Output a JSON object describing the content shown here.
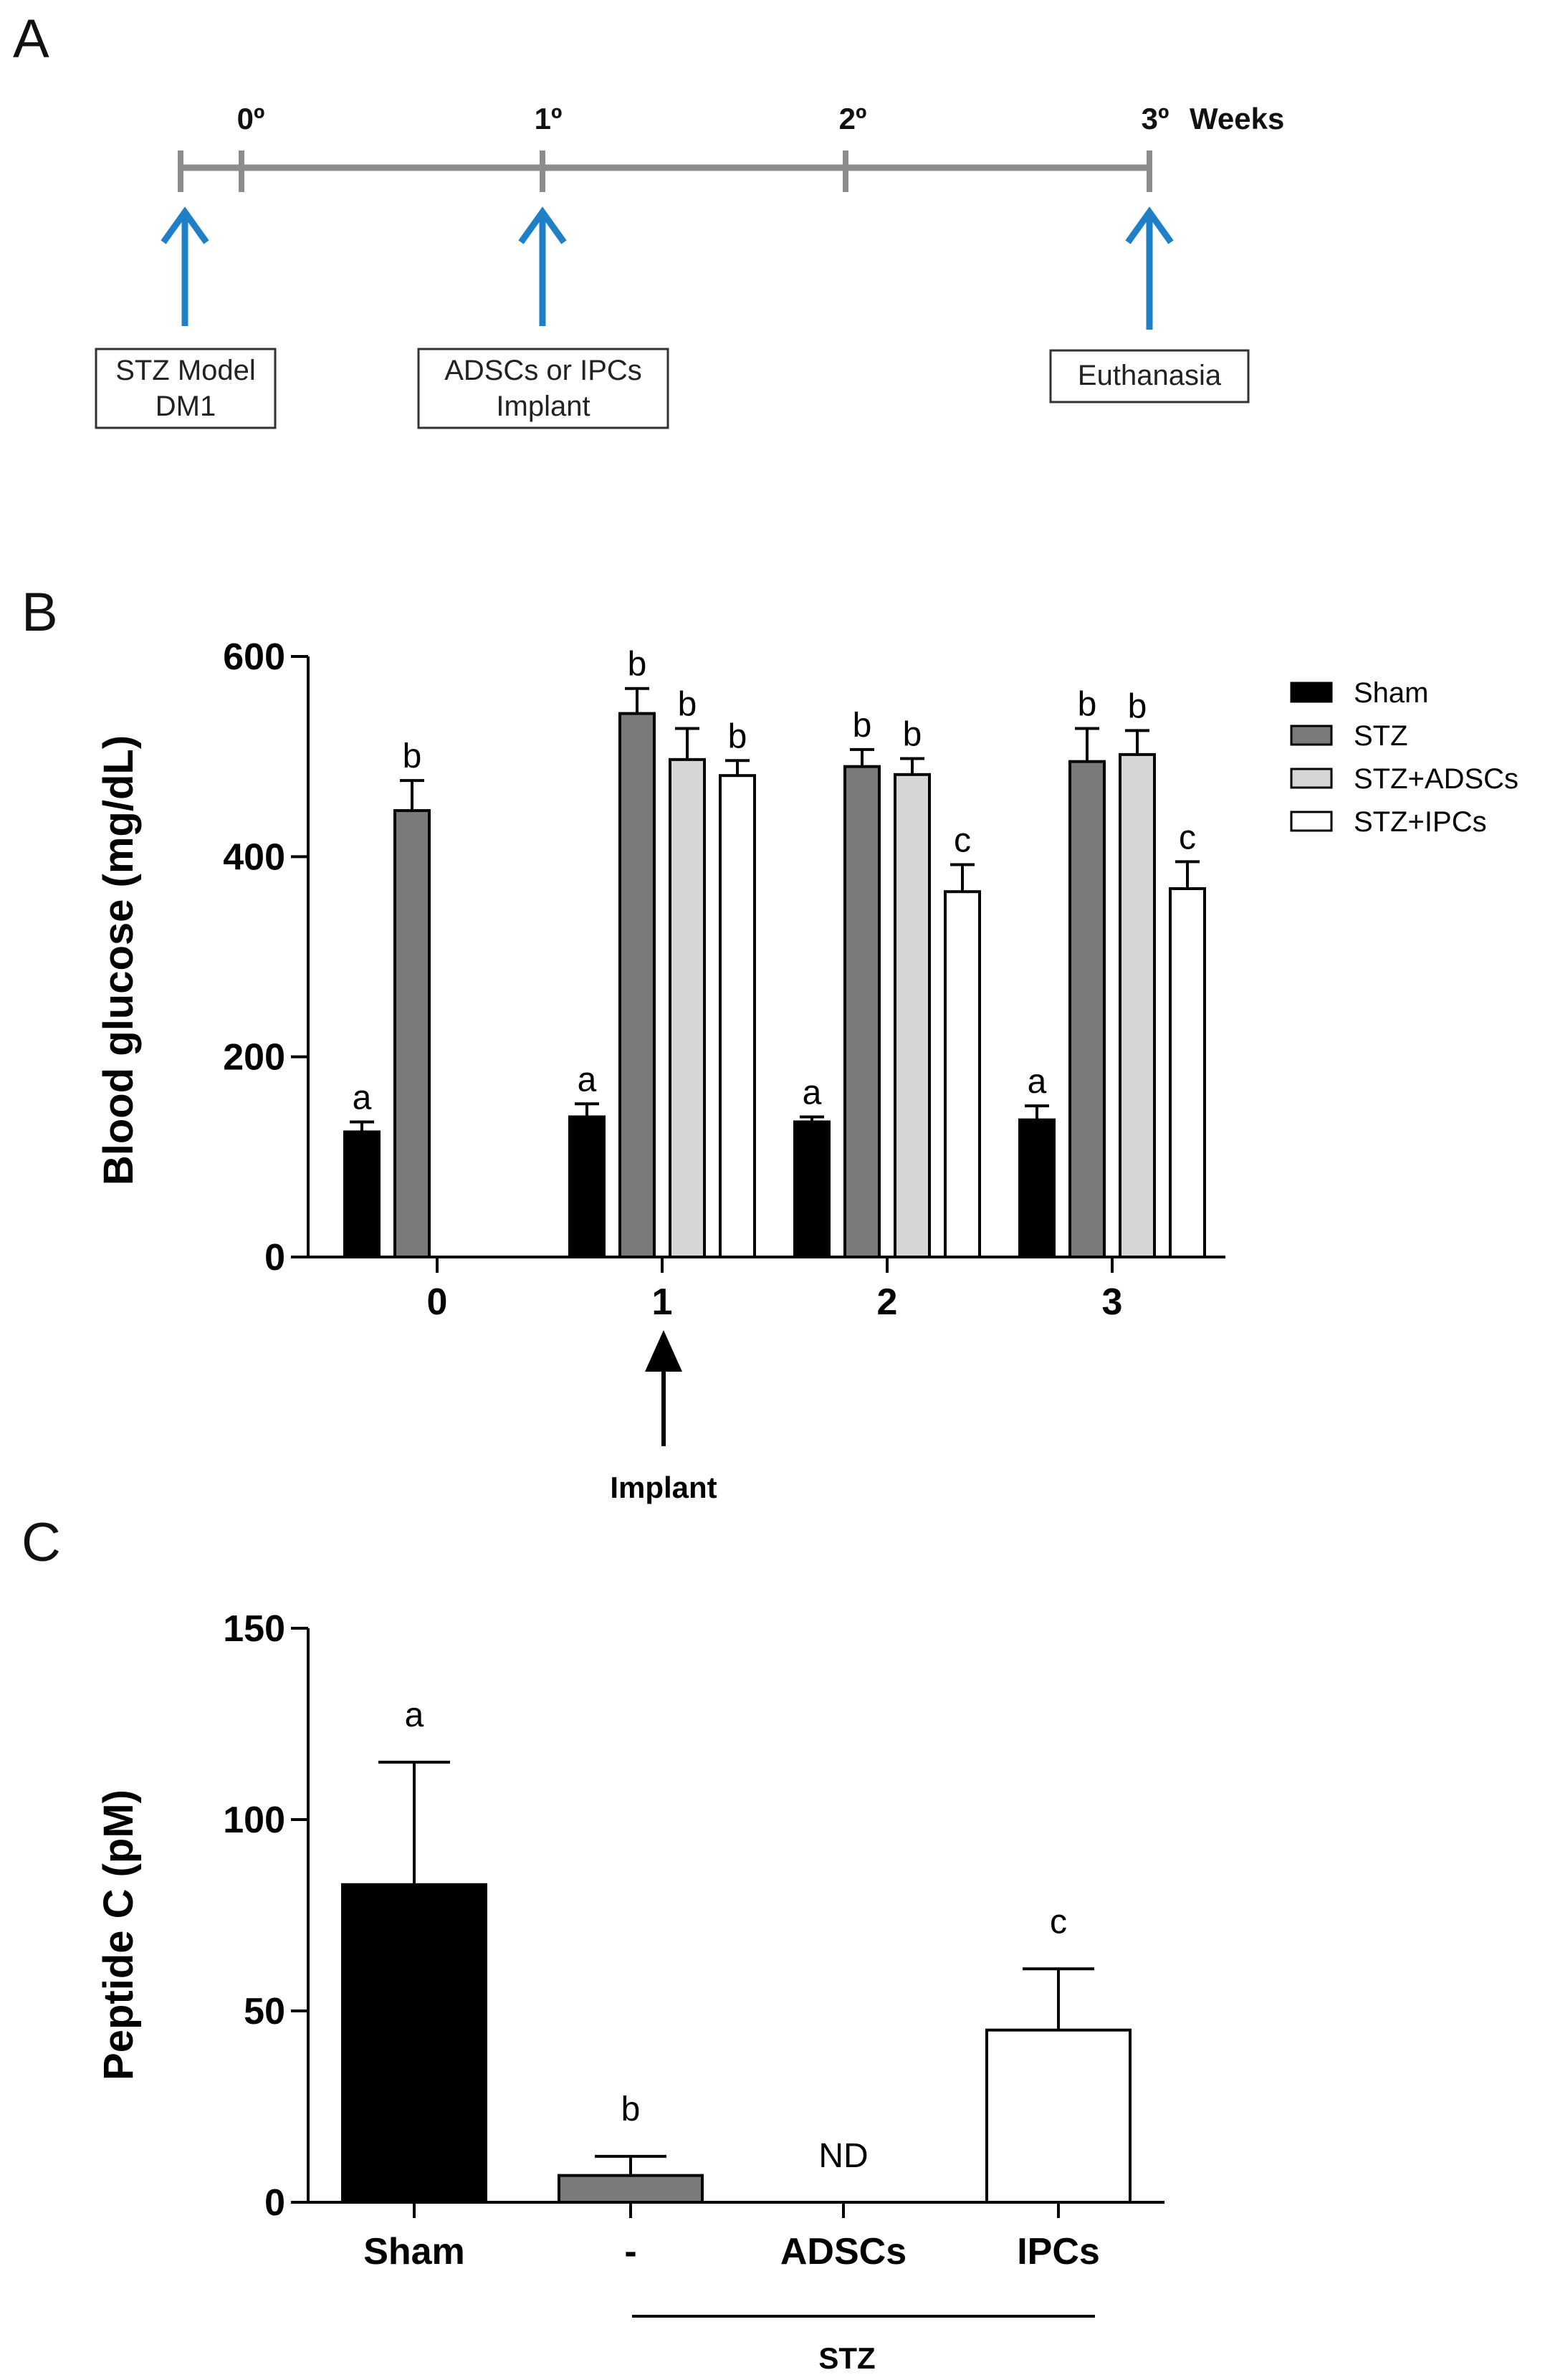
{
  "panels": {
    "a_letter": "A",
    "b_letter": "B",
    "c_letter": "C"
  },
  "timeline": {
    "ticks": [
      "0º",
      "1º",
      "2º",
      "3º"
    ],
    "unit_label": "Weeks",
    "events": [
      {
        "line1": "STZ Model",
        "line2": "DM1"
      },
      {
        "line1": "ADSCs or IPCs",
        "line2": "Implant"
      },
      {
        "line1": "Euthanasia",
        "line2": ""
      }
    ],
    "arrow_color": "#1f7fc7",
    "line_color": "#8c8c8c"
  },
  "implant_annotation": "Implant",
  "stz_group_label": "STZ",
  "nd_label": "ND",
  "chart_data": [
    {
      "type": "bar",
      "title": "",
      "xlabel": "",
      "ylabel": "Blood glucose (mg/dL)",
      "categories": [
        "0",
        "1",
        "2",
        "3"
      ],
      "yticks": [
        "0",
        "200",
        "400",
        "600"
      ],
      "ylim": [
        0,
        600
      ],
      "legend_position": "right",
      "series": [
        {
          "name": "Sham",
          "color": "#000000",
          "values": [
            125,
            140,
            135,
            137
          ],
          "errors": [
            10,
            13,
            5,
            14
          ],
          "letters": [
            "a",
            "a",
            "a",
            "a"
          ]
        },
        {
          "name": "STZ",
          "color": "#7a7a7a",
          "values": [
            446,
            543,
            490,
            495
          ],
          "errors": [
            30,
            25,
            17,
            33
          ],
          "letters": [
            "b",
            "b",
            "b",
            "b"
          ]
        },
        {
          "name": "STZ+ADSCs",
          "color": "#d6d6d6",
          "values": [
            null,
            497,
            482,
            502
          ],
          "errors": [
            null,
            31,
            16,
            24
          ],
          "letters": [
            "",
            "b",
            "b",
            "b"
          ]
        },
        {
          "name": "STZ+IPCs",
          "color": "#ffffff",
          "values": [
            null,
            481,
            365,
            368
          ],
          "errors": [
            null,
            15,
            27,
            27
          ],
          "letters": [
            "",
            "b",
            "c",
            "c"
          ]
        }
      ]
    },
    {
      "type": "bar",
      "title": "",
      "xlabel": "",
      "ylabel": "Peptide C (pM)",
      "categories": [
        "Sham",
        "-",
        "ADSCs",
        "IPCs"
      ],
      "yticks": [
        "0",
        "50",
        "100",
        "150"
      ],
      "ylim": [
        0,
        150
      ],
      "colors": [
        "#000000",
        "#7a7a7a",
        "#d6d6d6",
        "#ffffff"
      ],
      "values": [
        83,
        7,
        null,
        45
      ],
      "errors": [
        32,
        5,
        null,
        16
      ],
      "letters": [
        "a",
        "b",
        "",
        "c"
      ]
    }
  ]
}
